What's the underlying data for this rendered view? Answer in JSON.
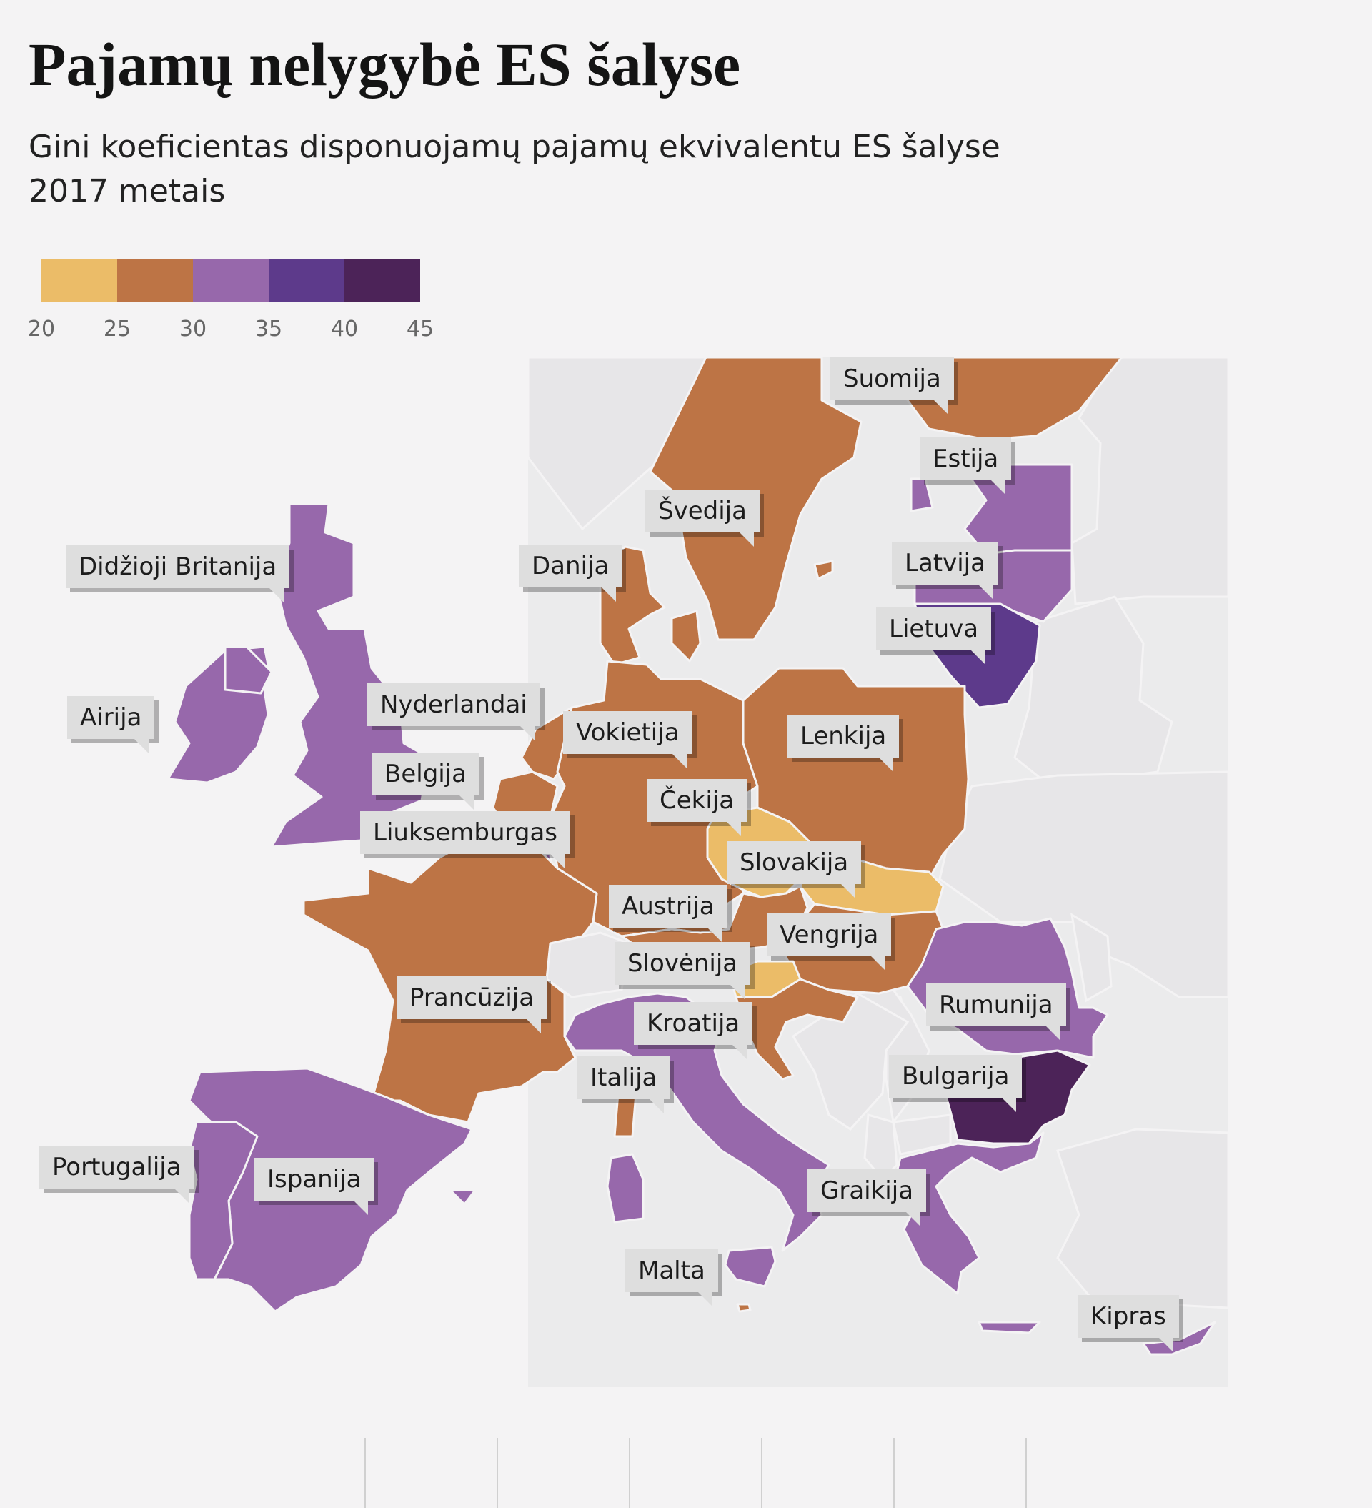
{
  "title": "Pajamų nelygybė ES šalyse",
  "subtitle": "Gini koeficientas disponuojamų pajamų ekvivalentu ES šalyse 2017 metais",
  "legend": {
    "ticks": [
      "20",
      "25",
      "30",
      "35",
      "40",
      "45"
    ],
    "colors": [
      "#ebbc68",
      "#bd7445",
      "#9768ab",
      "#5d3a8b",
      "#4c2358"
    ]
  },
  "colors": {
    "background": "#f4f3f4",
    "non_eu": "#e7e6e8",
    "c25_30": "#bd7445",
    "c20_25": "#ebbc68",
    "c30_35": "#9768ab",
    "c35_40": "#5d3a8b",
    "c40_45": "#4c2358"
  },
  "countries": [
    {
      "name": "Suomija",
      "band": "25-30"
    },
    {
      "name": "Estija",
      "band": "30-35"
    },
    {
      "name": "Švedija",
      "band": "25-30"
    },
    {
      "name": "Latvija",
      "band": "30-35"
    },
    {
      "name": "Danija",
      "band": "25-30"
    },
    {
      "name": "Didžioji Britanija",
      "band": "30-35"
    },
    {
      "name": "Lietuva",
      "band": "35-40"
    },
    {
      "name": "Airija",
      "band": "30-35"
    },
    {
      "name": "Nyderlandai",
      "band": "25-30"
    },
    {
      "name": "Vokietija",
      "band": "25-30"
    },
    {
      "name": "Lenkija",
      "band": "25-30"
    },
    {
      "name": "Belgija",
      "band": "25-30"
    },
    {
      "name": "Čekija",
      "band": "20-25"
    },
    {
      "name": "Liuksemburgas",
      "band": "30-35"
    },
    {
      "name": "Slovakija",
      "band": "20-25"
    },
    {
      "name": "Austrija",
      "band": "25-30"
    },
    {
      "name": "Vengrija",
      "band": "25-30"
    },
    {
      "name": "Slovėnija",
      "band": "20-25"
    },
    {
      "name": "Prancūzija",
      "band": "25-30"
    },
    {
      "name": "Rumunija",
      "band": "30-35"
    },
    {
      "name": "Kroatija",
      "band": "25-30"
    },
    {
      "name": "Italija",
      "band": "30-35"
    },
    {
      "name": "Bulgarija",
      "band": "40-45"
    },
    {
      "name": "Portugalija",
      "band": "30-35"
    },
    {
      "name": "Ispanija",
      "band": "30-35"
    },
    {
      "name": "Graikija",
      "band": "30-35"
    },
    {
      "name": "Malta",
      "band": "25-30"
    },
    {
      "name": "Kipras",
      "band": "30-35"
    }
  ]
}
